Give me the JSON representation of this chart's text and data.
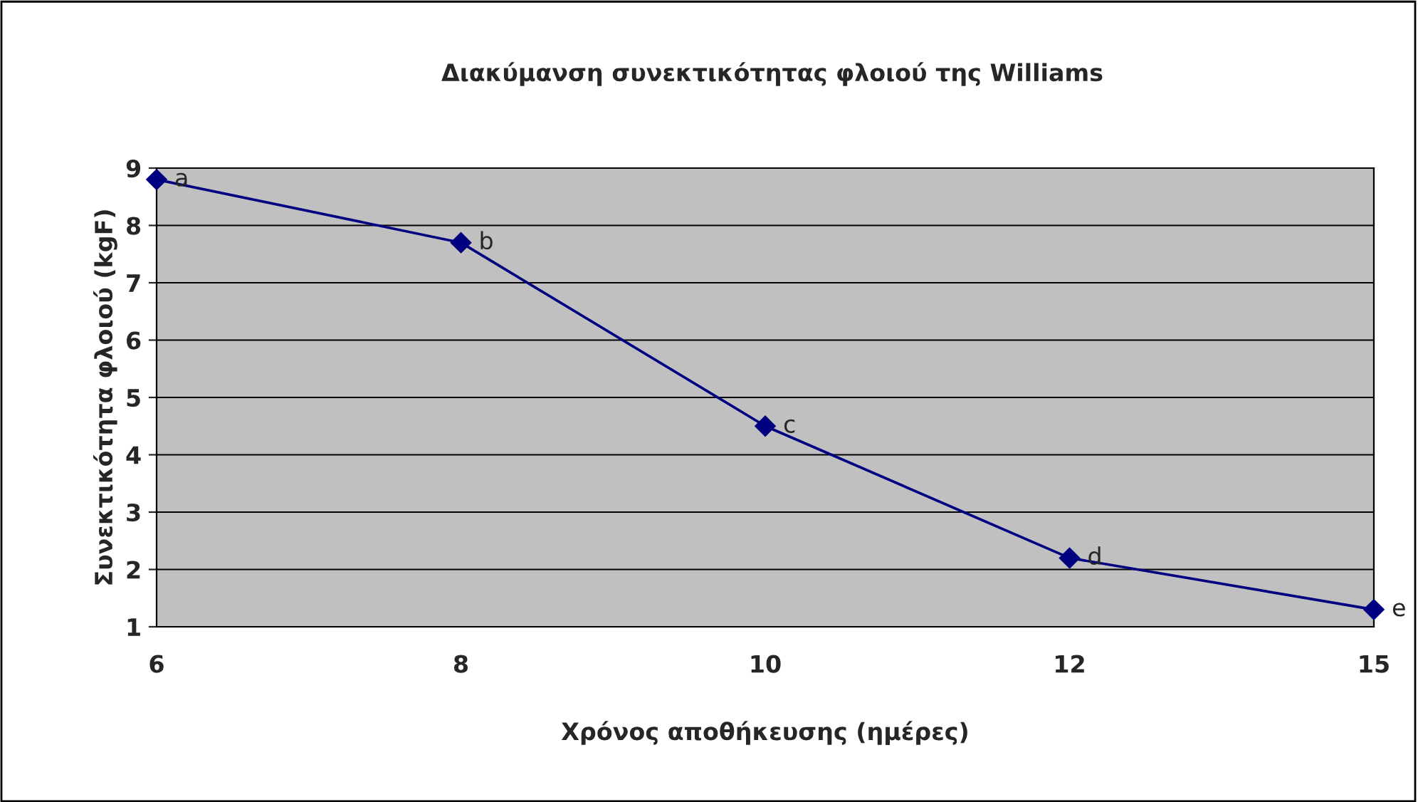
{
  "chart_data": {
    "type": "line",
    "title": "Διακύμανση συνεκτικότητας φλοιού της Williams",
    "xlabel": "Χρόνος αποθήκευσης (ημέρες)",
    "ylabel": "Συνεκτικότητα φλοιού (kgF)",
    "categories": [
      "6",
      "8",
      "10",
      "12",
      "15"
    ],
    "series": [
      {
        "color": "#000080",
        "values": [
          8.8,
          7.7,
          4.5,
          2.2,
          1.3
        ]
      }
    ],
    "ylim": [
      1,
      9
    ],
    "yticks": [
      1,
      2,
      3,
      4,
      5,
      6,
      7,
      8,
      9
    ],
    "grid": "y",
    "marker": "diamond",
    "line_style": "solid",
    "annotations": [
      {
        "text": "a",
        "x": "6",
        "y": 8.8
      },
      {
        "text": "b",
        "x": "8",
        "y": 7.7
      },
      {
        "text": "c",
        "x": "10",
        "y": 4.5
      },
      {
        "text": "d",
        "x": "12",
        "y": 2.2
      },
      {
        "text": "e",
        "x": "15",
        "y": 1.3
      }
    ]
  }
}
